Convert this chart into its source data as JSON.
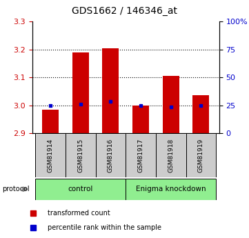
{
  "title": "GDS1662 / 146346_at",
  "samples": [
    "GSM81914",
    "GSM81915",
    "GSM81916",
    "GSM81917",
    "GSM81918",
    "GSM81919"
  ],
  "red_values": [
    2.985,
    3.19,
    3.205,
    3.0,
    3.105,
    3.035
  ],
  "blue_values": [
    3.0,
    3.005,
    3.015,
    3.0,
    2.995,
    3.0
  ],
  "y_min": 2.9,
  "y_max": 3.3,
  "y_ticks_left": [
    2.9,
    3.0,
    3.1,
    3.2,
    3.3
  ],
  "right_ticks_positions": [
    2.9,
    3.0,
    3.1,
    3.2,
    3.3
  ],
  "right_ticks_labels": [
    "0",
    "25",
    "50",
    "75",
    "100%"
  ],
  "dotted_lines": [
    3.0,
    3.1,
    3.2
  ],
  "bar_color": "#cc0000",
  "dot_color": "#0000cc",
  "bar_bottom": 2.9,
  "bar_width": 0.55,
  "legend_red_label": "transformed count",
  "legend_blue_label": "percentile rank within the sample",
  "protocol_label": "protocol",
  "left_tick_color": "#cc0000",
  "right_tick_color": "#0000cc",
  "tick_box_color": "#cccccc",
  "group_color": "#90ee90",
  "group_labels": [
    "control",
    "Enigma knockdown"
  ],
  "group_ranges": [
    [
      -0.5,
      2.5
    ],
    [
      2.5,
      5.5
    ]
  ]
}
